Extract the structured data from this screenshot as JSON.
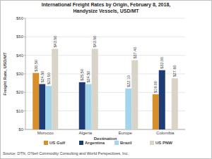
{
  "chart_data": {
    "type": "bar",
    "title": "International Freight Rates by Origin, February 8, 2018,",
    "subtitle": "Handysize Vessels, USD/MT",
    "y_label": "Freight Rate, USD/MT",
    "x_label": "Destination",
    "source": "Source: DTN, O'Neil Commodity Consulting and World Perspectives, Inc.",
    "categories": [
      "Morocco",
      "Algeria",
      "Europe",
      "Colombia"
    ],
    "series": [
      {
        "name": "US Gulf",
        "color": "#d68f2a",
        "values": [
          30.5,
          null,
          null,
          19.0
        ],
        "value_labels": [
          "$30.50",
          null,
          null,
          "$19.00"
        ]
      },
      {
        "name": "Argentina",
        "color": "#1f3b73",
        "values": [
          24.5,
          25.5,
          null,
          32.0
        ],
        "value_labels": [
          "$24.50",
          "$25.50",
          null,
          "$32.00"
        ]
      },
      {
        "name": "Brazil",
        "color": "#a3d6ec",
        "values": [
          23.5,
          24.5,
          22.1,
          null
        ],
        "value_labels": [
          "$23.50",
          "$24.50",
          "$22.10",
          null
        ]
      },
      {
        "name": "US PNW",
        "color": "#d9d4c8",
        "values": [
          43.5,
          43.5,
          37.4,
          27.6
        ],
        "value_labels": [
          "$43.50",
          "$43.50",
          "$37.40",
          "$27.60"
        ]
      }
    ],
    "ylim": [
      0,
      60
    ],
    "yticks": [
      {
        "value": 0,
        "label": "$0"
      },
      {
        "value": 10,
        "label": "$10"
      },
      {
        "value": 20,
        "label": "$20"
      },
      {
        "value": 30,
        "label": "$30"
      },
      {
        "value": 40,
        "label": "$40"
      },
      {
        "value": 50,
        "label": "$50"
      },
      {
        "value": 60,
        "label": "$60"
      }
    ],
    "grid": true,
    "data_labels": true,
    "legend": "bottom"
  }
}
